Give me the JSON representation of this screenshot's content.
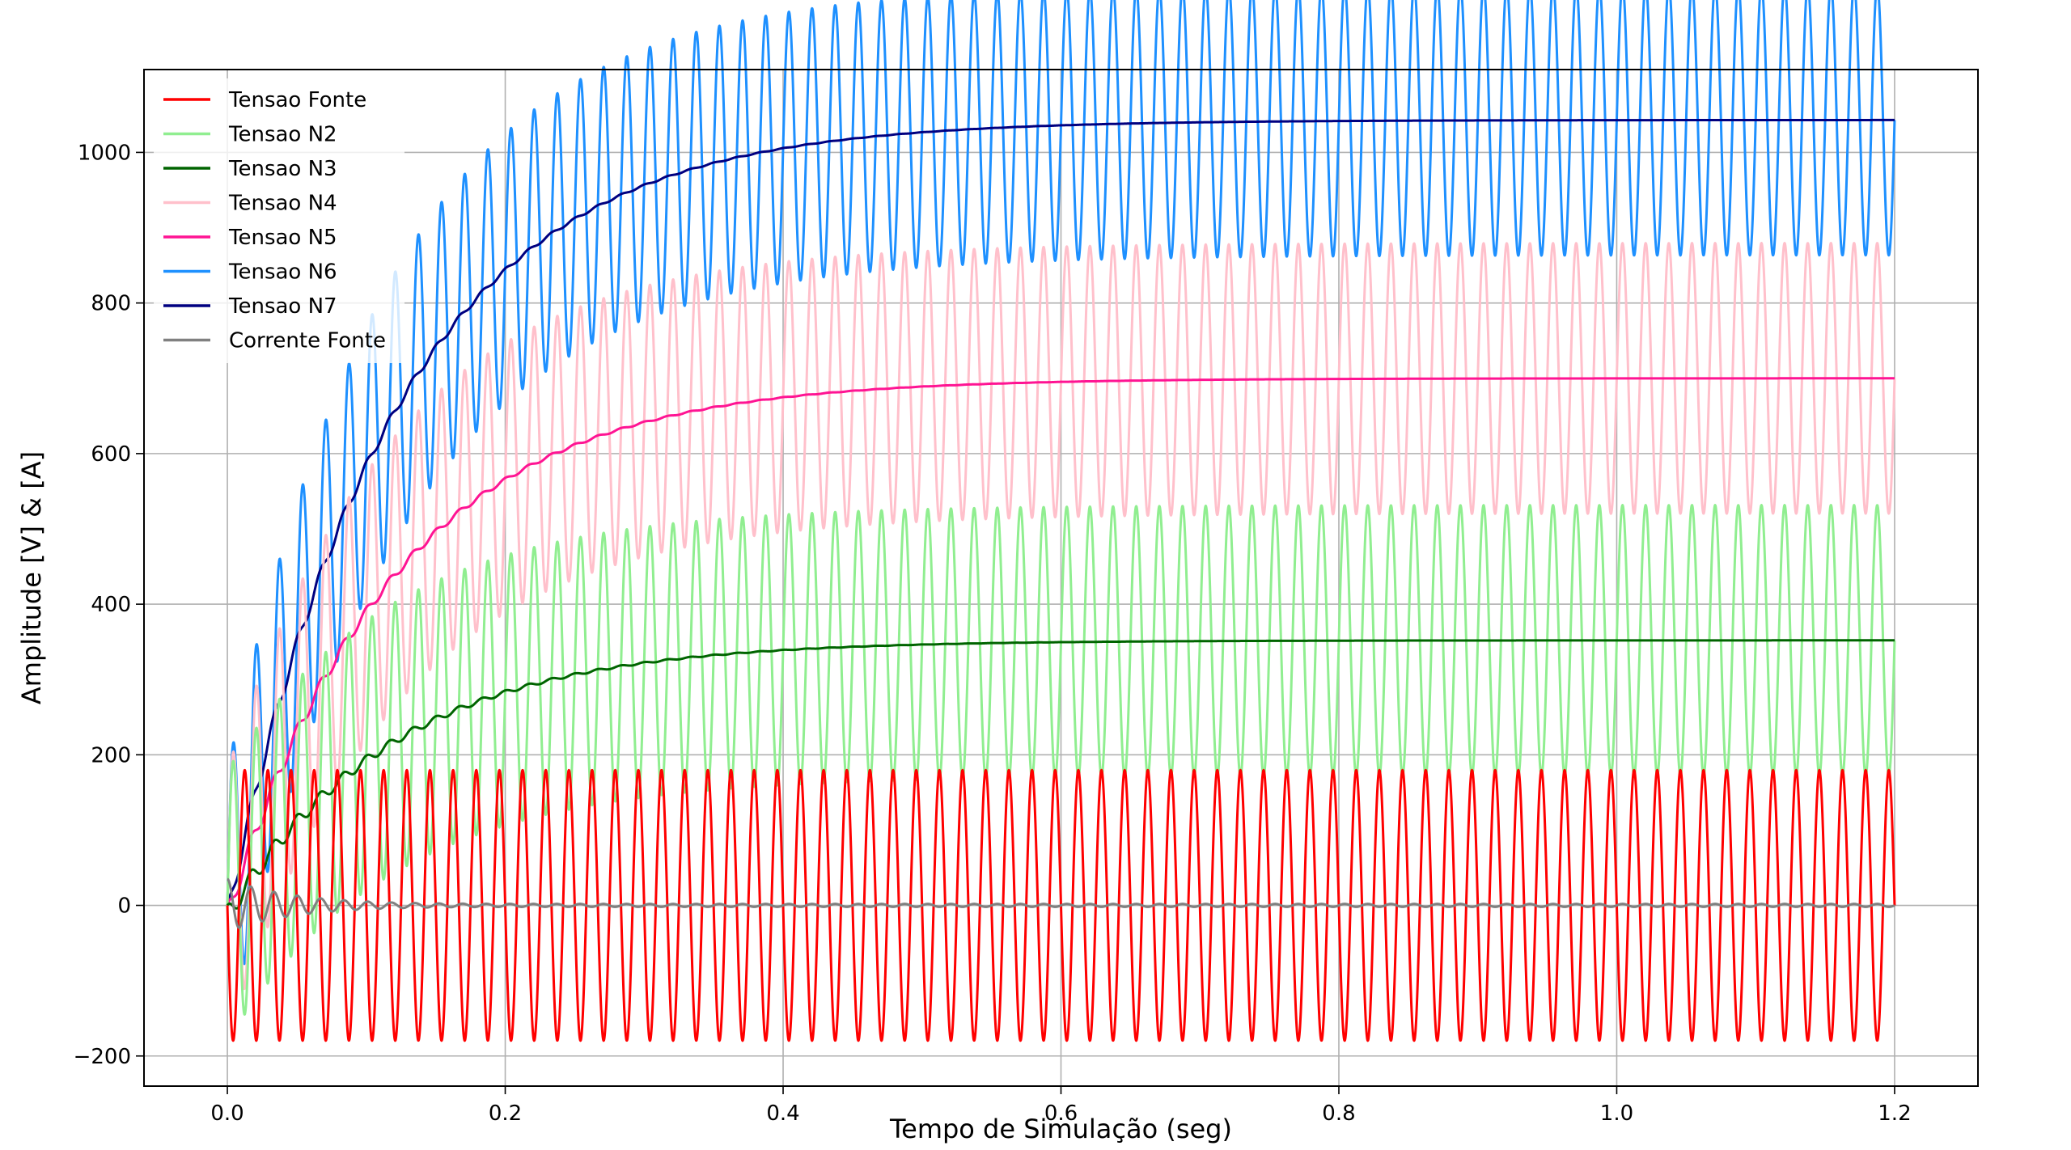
{
  "chart_data": {
    "type": "line",
    "xlabel": "Tempo de Simulação (seg)",
    "ylabel": "Amplitude [V] & [A]",
    "xlim": [
      -0.06,
      1.26
    ],
    "ylim": [
      -240,
      1110
    ],
    "x_range": [
      0,
      1.2
    ],
    "frequency_hz": 60,
    "time_constant_s": 0.12,
    "grid": true,
    "legend_position": "upper-left",
    "x_ticks": [
      {
        "value": 0.0,
        "label": "0.0"
      },
      {
        "value": 0.2,
        "label": "0.2"
      },
      {
        "value": 0.4,
        "label": "0.4"
      },
      {
        "value": 0.6,
        "label": "0.6"
      },
      {
        "value": 0.8,
        "label": "0.8"
      },
      {
        "value": 1.0,
        "label": "1.0"
      },
      {
        "value": 1.2,
        "label": "1.2"
      }
    ],
    "y_ticks": [
      {
        "value": -200,
        "label": "−200"
      },
      {
        "value": 0,
        "label": "0"
      },
      {
        "value": 200,
        "label": "200"
      },
      {
        "value": 400,
        "label": "400"
      },
      {
        "value": 600,
        "label": "600"
      },
      {
        "value": 800,
        "label": "800"
      },
      {
        "value": 1000,
        "label": "1000"
      }
    ],
    "series": [
      {
        "name": "Tensao Fonte",
        "color": "#ff0000",
        "kind": "source",
        "amplitude": 179.6,
        "steady_dc": 0
      },
      {
        "name": "Tensao N2",
        "color": "#90ee90",
        "kind": "stage_ac",
        "amplitude": 179.6,
        "steady_dc": 352
      },
      {
        "name": "Tensao N3",
        "color": "#006400",
        "kind": "stage_dc",
        "amplitude": 179.6,
        "steady_dc": 352
      },
      {
        "name": "Tensao N4",
        "color": "#ffc0cb",
        "kind": "stage_ac",
        "amplitude": 179.6,
        "steady_dc": 700
      },
      {
        "name": "Tensao N5",
        "color": "#ff1493",
        "kind": "stage_dc",
        "amplitude": 179.6,
        "steady_dc": 700
      },
      {
        "name": "Tensao N6",
        "color": "#1e90ff",
        "kind": "stage_ac",
        "amplitude": 179.6,
        "steady_dc": 1043
      },
      {
        "name": "Tensao N7",
        "color": "#000080",
        "kind": "stage_dc",
        "amplitude": 179.6,
        "steady_dc": 1043
      },
      {
        "name": "Corrente Fonte",
        "color": "#808080",
        "kind": "current",
        "amplitude": 35,
        "steady_dc": 0
      }
    ]
  }
}
